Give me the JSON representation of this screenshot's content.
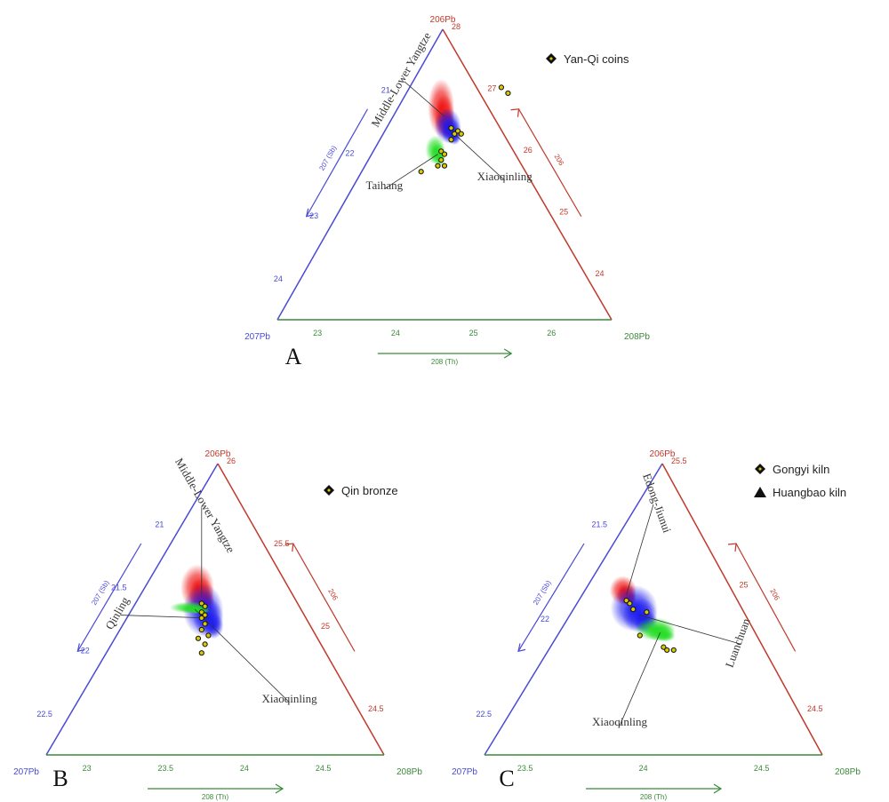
{
  "colors": {
    "blue": "#4a4ad6",
    "red": "#c0392b",
    "green": "#3a8a3a",
    "marker": "#d8c800",
    "marker_edge": "#111111",
    "label": "#333333"
  },
  "chart_data": [
    {
      "type": "scatter",
      "panel_label": "A",
      "vertex_labels": {
        "top": "206Pb",
        "left": "207Pb",
        "right": "208Pb"
      },
      "axis_labels": {
        "left": "207 (Sb)",
        "right": "206",
        "bottom": "208 (Th)"
      },
      "ticks": {
        "right": [
          "28",
          "27",
          "26",
          "25",
          "24"
        ],
        "left": [
          "21",
          "22",
          "23",
          "24"
        ],
        "bottom": [
          "23",
          "24",
          "25",
          "26"
        ]
      },
      "legend": [
        {
          "marker": "diamond",
          "label": "Yan-Qi coins"
        }
      ],
      "field_labels": [
        "Middle-Lower Yangtze",
        "Xiaoqinling",
        "Taihang"
      ],
      "fields": [
        {
          "color": "red",
          "x": 0.5,
          "y": 0.3,
          "w": 0.08,
          "h": 0.2
        },
        {
          "color": "blue",
          "x": 0.52,
          "y": 0.35,
          "w": 0.08,
          "h": 0.12
        },
        {
          "color": "green",
          "x": 0.48,
          "y": 0.43,
          "w": 0.06,
          "h": 0.1
        }
      ],
      "points": [
        [
          0.67,
          0.2
        ],
        [
          0.69,
          0.22
        ],
        [
          0.52,
          0.34
        ],
        [
          0.53,
          0.36
        ],
        [
          0.54,
          0.35
        ],
        [
          0.52,
          0.38
        ],
        [
          0.55,
          0.36
        ],
        [
          0.49,
          0.42
        ],
        [
          0.5,
          0.43
        ],
        [
          0.49,
          0.45
        ],
        [
          0.5,
          0.47
        ],
        [
          0.48,
          0.47
        ],
        [
          0.43,
          0.49
        ]
      ]
    },
    {
      "type": "scatter",
      "panel_label": "B",
      "vertex_labels": {
        "top": "206Pb",
        "left": "207Pb",
        "right": "208Pb"
      },
      "axis_labels": {
        "left": "207 (Sb)",
        "right": "206",
        "bottom": "208 (Th)"
      },
      "ticks": {
        "right": [
          "26",
          "25.5",
          "25",
          "24.5"
        ],
        "left": [
          "21",
          "21.5",
          "22",
          "22.5"
        ],
        "bottom": [
          "23",
          "23.5",
          "24",
          "24.5"
        ]
      },
      "legend": [
        {
          "marker": "diamond",
          "label": "Qin bronze"
        }
      ],
      "field_labels": [
        "Middle-Lower Yangtze",
        "Qinling",
        "Xiaoqinling"
      ],
      "fields": [
        {
          "color": "red",
          "x": 0.46,
          "y": 0.45,
          "w": 0.1,
          "h": 0.16
        },
        {
          "color": "blue",
          "x": 0.48,
          "y": 0.53,
          "w": 0.12,
          "h": 0.18
        },
        {
          "color": "green",
          "x": 0.44,
          "y": 0.5,
          "w": 0.12,
          "h": 0.04
        }
      ],
      "points": [
        [
          0.46,
          0.48
        ],
        [
          0.47,
          0.49
        ],
        [
          0.46,
          0.51
        ],
        [
          0.47,
          0.52
        ],
        [
          0.46,
          0.53
        ],
        [
          0.47,
          0.55
        ],
        [
          0.46,
          0.57
        ],
        [
          0.48,
          0.59
        ],
        [
          0.45,
          0.6
        ],
        [
          0.47,
          0.62
        ],
        [
          0.46,
          0.65
        ]
      ]
    },
    {
      "type": "scatter",
      "panel_label": "C",
      "vertex_labels": {
        "top": "206Pb",
        "left": "207Pb",
        "right": "208Pb"
      },
      "axis_labels": {
        "left": "207 (Sb)",
        "right": "206",
        "bottom": "208 (Th)"
      },
      "ticks": {
        "right": [
          "25.5",
          "25",
          "24.5"
        ],
        "left": [
          "21.5",
          "22",
          "22.5"
        ],
        "bottom": [
          "23.5",
          "24",
          "24.5"
        ]
      },
      "legend": [
        {
          "marker": "diamond",
          "label": "Gongyi kiln"
        },
        {
          "marker": "triangle",
          "label": "Huangbao kiln"
        }
      ],
      "field_labels": [
        "Edong-Jiunui",
        "Luanchuan",
        "Xiaoqinling"
      ],
      "fields": [
        {
          "color": "red",
          "x": 0.42,
          "y": 0.45,
          "w": 0.08,
          "h": 0.1
        },
        {
          "color": "blue",
          "x": 0.46,
          "y": 0.52,
          "w": 0.14,
          "h": 0.16
        },
        {
          "color": "green",
          "x": 0.52,
          "y": 0.58,
          "w": 0.12,
          "h": 0.08
        }
      ],
      "points": [
        [
          0.42,
          0.47
        ],
        [
          0.43,
          0.48
        ],
        [
          0.44,
          0.5
        ],
        [
          0.48,
          0.51
        ],
        [
          0.46,
          0.59
        ],
        [
          0.53,
          0.63
        ],
        [
          0.54,
          0.64
        ],
        [
          0.56,
          0.64
        ]
      ]
    }
  ]
}
